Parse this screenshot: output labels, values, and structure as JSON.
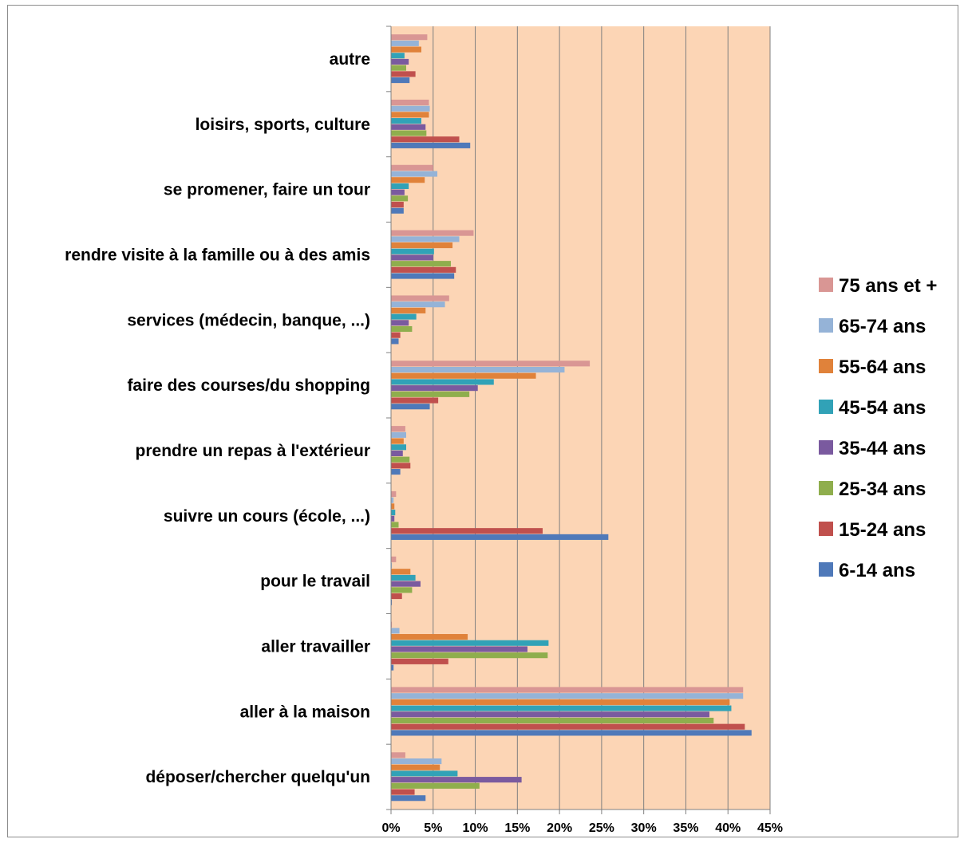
{
  "chart_data": {
    "type": "bar",
    "orientation": "horizontal",
    "categories": [
      "autre",
      "loisirs, sports, culture",
      "se promener, faire un tour",
      "rendre visite à la famille ou à des amis",
      "services (médecin, banque, ...)",
      "faire des courses/du shopping",
      "prendre un repas à l'extérieur",
      "suivre un cours (école, ...)",
      "pour le travail",
      "aller travailler",
      "aller à la maison",
      "déposer/chercher quelqu'un"
    ],
    "series": [
      {
        "name": "75 ans et +",
        "color": "#d99694",
        "values": [
          4.3,
          4.5,
          5.0,
          9.8,
          6.9,
          23.6,
          1.7,
          0.6,
          0.6,
          0.1,
          41.8,
          1.7
        ]
      },
      {
        "name": "65-74 ans",
        "color": "#95b3d7",
        "values": [
          3.3,
          4.6,
          5.5,
          8.1,
          6.4,
          20.6,
          1.8,
          0.3,
          0.1,
          1.0,
          41.8,
          6.0
        ]
      },
      {
        "name": "55-64 ans",
        "color": "#e0823a",
        "values": [
          3.6,
          4.5,
          4.0,
          7.3,
          4.1,
          17.2,
          1.5,
          0.4,
          2.3,
          9.1,
          40.2,
          5.8
        ]
      },
      {
        "name": "45-54 ans",
        "color": "#31a2b7",
        "values": [
          1.6,
          3.6,
          2.1,
          5.1,
          3.0,
          12.2,
          1.8,
          0.5,
          2.9,
          18.7,
          40.4,
          7.9
        ]
      },
      {
        "name": "35-44 ans",
        "color": "#7a5a9f",
        "values": [
          2.1,
          4.1,
          1.6,
          5.0,
          2.1,
          10.3,
          1.4,
          0.4,
          3.5,
          16.2,
          37.8,
          15.5
        ]
      },
      {
        "name": "25-34 ans",
        "color": "#8fae4d",
        "values": [
          1.8,
          4.2,
          2.0,
          7.1,
          2.5,
          9.3,
          2.2,
          0.9,
          2.5,
          18.6,
          38.3,
          10.5
        ]
      },
      {
        "name": "15-24 ans",
        "color": "#c0504d",
        "values": [
          2.9,
          8.1,
          1.5,
          7.7,
          1.1,
          5.6,
          2.3,
          18.0,
          1.3,
          6.8,
          42.0,
          2.8
        ]
      },
      {
        "name": "6-14 ans",
        "color": "#4f79b9",
        "values": [
          2.2,
          9.4,
          1.5,
          7.5,
          0.9,
          4.6,
          1.1,
          25.8,
          0.1,
          0.3,
          42.8,
          4.1
        ]
      }
    ],
    "xlabel": "",
    "ylabel": "",
    "xlim": [
      0,
      45
    ],
    "xticks": [
      "0%",
      "5%",
      "10%",
      "15%",
      "20%",
      "25%",
      "30%",
      "35%",
      "40%",
      "45%"
    ],
    "xtick_values": [
      0,
      5,
      10,
      15,
      20,
      25,
      30,
      35,
      40,
      45
    ],
    "legend_position": "right",
    "plot_background": "#fcd5b5",
    "grid": "vertical"
  }
}
